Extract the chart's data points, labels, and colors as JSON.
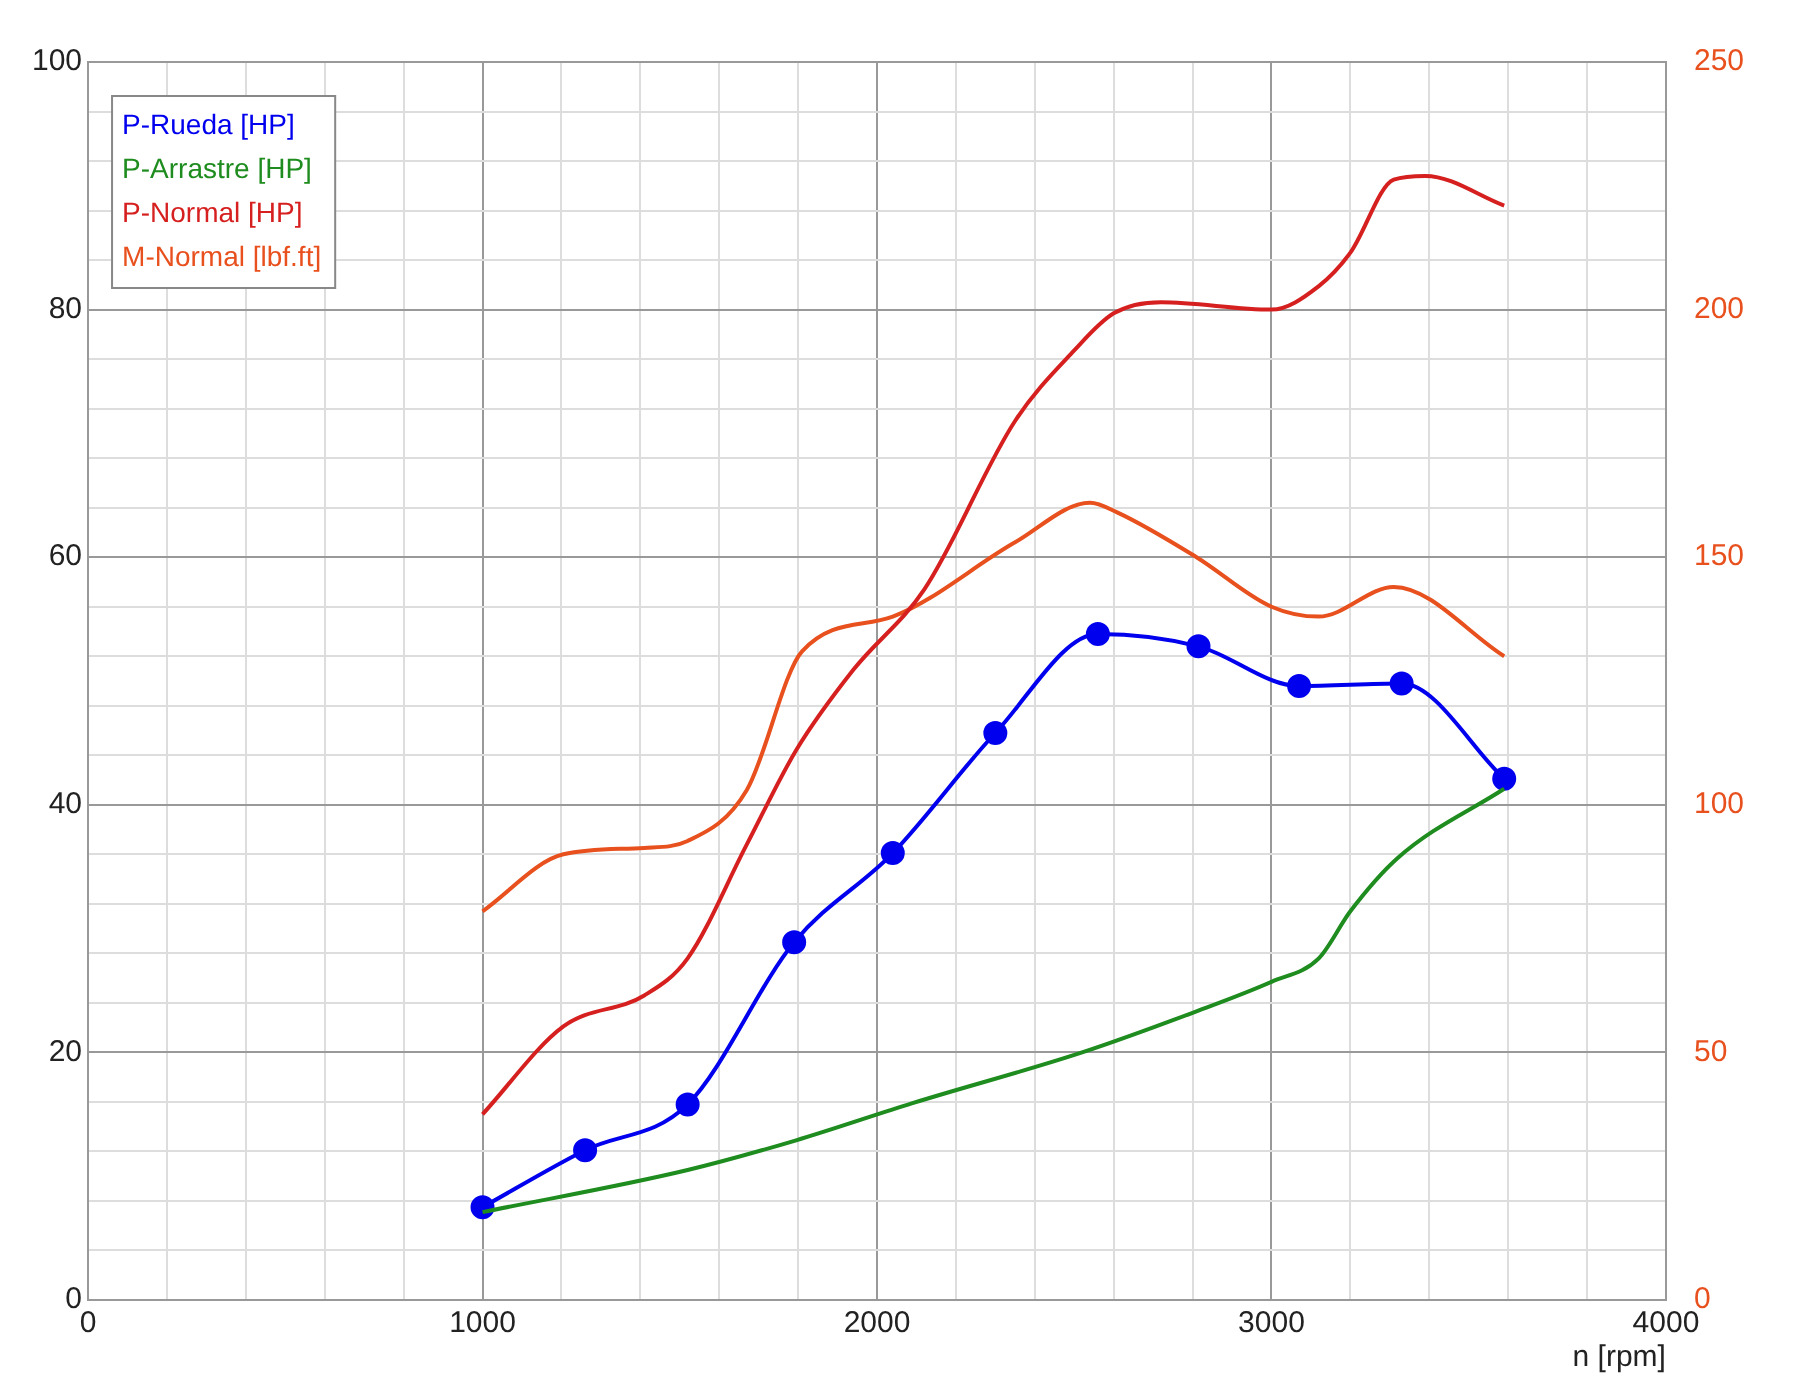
{
  "chart_data": {
    "type": "line",
    "xlabel": "n [rpm]",
    "legend": "top left",
    "grid": true,
    "line_style": "solid",
    "xlim": [
      0,
      4000
    ],
    "xticks": [
      0,
      {
        "value": 200,
        "label": null
      },
      {
        "value": 400,
        "label": null
      },
      {
        "value": 600,
        "label": null
      },
      {
        "value": 800,
        "label": null
      },
      1000,
      {
        "value": 1200,
        "label": null
      },
      {
        "value": 1400,
        "label": null
      },
      {
        "value": 1600,
        "label": null
      },
      {
        "value": 1800,
        "label": null
      },
      2000,
      {
        "value": 2200,
        "label": null
      },
      {
        "value": 2400,
        "label": null
      },
      {
        "value": 2600,
        "label": null
      },
      {
        "value": 2800,
        "label": null
      },
      3000,
      {
        "value": 3200,
        "label": null
      },
      {
        "value": 3400,
        "label": null
      },
      {
        "value": 3600,
        "label": null
      },
      {
        "value": 3800,
        "label": null
      },
      4000
    ],
    "ylim": [
      0,
      100
    ],
    "yticks": [
      0,
      {
        "value": 4,
        "label": null
      },
      {
        "value": 8,
        "label": null
      },
      {
        "value": 12,
        "label": null
      },
      {
        "value": 16,
        "label": null
      },
      20,
      {
        "value": 24,
        "label": null
      },
      {
        "value": 28,
        "label": null
      },
      {
        "value": 32,
        "label": null
      },
      {
        "value": 36,
        "label": null
      },
      40,
      {
        "value": 44,
        "label": null
      },
      {
        "value": 48,
        "label": null
      },
      {
        "value": 52,
        "label": null
      },
      {
        "value": 56,
        "label": null
      },
      60,
      {
        "value": 64,
        "label": null
      },
      {
        "value": 68,
        "label": null
      },
      {
        "value": 72,
        "label": null
      },
      {
        "value": 76,
        "label": null
      },
      80,
      {
        "value": 84,
        "label": null
      },
      {
        "value": 88,
        "label": null
      },
      {
        "value": 92,
        "label": null
      },
      {
        "value": 96,
        "label": null
      },
      100
    ],
    "y2lim": [
      0,
      250
    ],
    "y2ticks": [
      0,
      50,
      100,
      150,
      200,
      250
    ],
    "series": [
      {
        "name": "P-Rueda [HP]",
        "color": "#0000ee",
        "marker": "circle",
        "x": [
          1000,
          1260,
          1520,
          1790,
          2040,
          2300,
          2560,
          2815,
          3070,
          3330,
          3590
        ],
        "values": [
          7.5,
          12.1,
          15.8,
          28.9,
          36.1,
          45.8,
          53.8,
          52.8,
          49.6,
          49.8,
          42.1
        ]
      },
      {
        "name": "P-Arrastre [HP]",
        "color": "#1e8c1e",
        "marker": "none",
        "x": [
          1000,
          1520,
          1795,
          2090,
          2520,
          2800,
          3000,
          3120,
          3200,
          3320,
          3590
        ],
        "values": [
          7.1,
          10.5,
          12.9,
          15.9,
          20.0,
          23.2,
          25.7,
          27.6,
          31.4,
          35.7,
          41.3
        ]
      },
      {
        "name": "P-Normal [HP]",
        "color": "#d62020",
        "marker": "none",
        "x": [
          1000,
          1205,
          1410,
          1520,
          1670,
          1795,
          1940,
          2120,
          2350,
          2500,
          2600,
          2720,
          3000,
          3120,
          3200,
          3310,
          3390,
          3590
        ],
        "values": [
          15.0,
          22.1,
          24.6,
          27.6,
          36.8,
          44.4,
          50.9,
          57.4,
          71,
          76.7,
          79.7,
          80.6,
          80,
          81.9,
          84.6,
          90.5,
          90.8,
          88.4
        ]
      },
      {
        "name": "M-Normal [lbf.ft]",
        "color": "#e8501e",
        "marker": "none",
        "axis": "y2",
        "x": [
          1000,
          1205,
          1410,
          1520,
          1670,
          1810,
          2040,
          2350,
          2540,
          2610,
          2810,
          3000,
          3120,
          3310,
          3590
        ],
        "values": [
          78.5,
          90,
          91.3,
          92.7,
          103,
          131,
          138,
          153,
          161,
          159,
          150,
          140,
          138,
          144,
          130
        ]
      }
    ]
  }
}
